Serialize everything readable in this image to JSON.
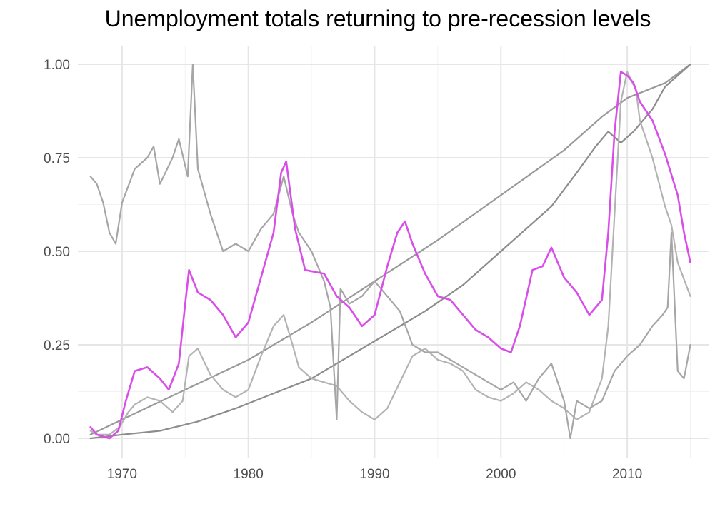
{
  "chart_data": {
    "type": "line",
    "title": "Unemployment totals returning to pre-recession levels",
    "xlabel": "",
    "ylabel": "",
    "xlim": [
      1966.5,
      2016.5
    ],
    "ylim": [
      0,
      1
    ],
    "x_ticks": [
      1970,
      1980,
      1990,
      2000,
      2010
    ],
    "x_tick_labels": [
      "1970",
      "1980",
      "1990",
      "2000",
      "2010"
    ],
    "y_ticks": [
      0,
      0.25,
      0.5,
      0.75,
      1
    ],
    "y_tick_labels": [
      "0.00",
      "0.25",
      "0.50",
      "0.75",
      "1.00"
    ],
    "grid": true,
    "legend": "none",
    "colors": {
      "highlight": "#d94ee8",
      "gray_mid": "#999999",
      "gray_dark": "#8c8c8c",
      "gray_light": "#b3b3b3",
      "gray_other": "#a6a6a6"
    },
    "series": [
      {
        "color": "#999999",
        "x": [
          1967.5,
          1970,
          1975,
          1980,
          1985,
          1990,
          1995,
          2000,
          2005,
          2008,
          2010,
          2013,
          2015
        ],
        "values": [
          0.01,
          0.05,
          0.13,
          0.21,
          0.31,
          0.42,
          0.53,
          0.65,
          0.77,
          0.86,
          0.91,
          0.95,
          1.0
        ]
      },
      {
        "color": "#8c8c8c",
        "x": [
          1967.5,
          1970,
          1973,
          1976,
          1979,
          1982,
          1985,
          1988,
          1991,
          1994,
          1997,
          2000,
          2002,
          2004,
          2006,
          2007.5,
          2008.5,
          2009.5,
          2010.5,
          2012,
          2013,
          2015
        ],
        "values": [
          0.0,
          0.01,
          0.02,
          0.045,
          0.08,
          0.12,
          0.16,
          0.22,
          0.28,
          0.34,
          0.41,
          0.5,
          0.56,
          0.62,
          0.71,
          0.78,
          0.82,
          0.79,
          0.82,
          0.88,
          0.94,
          1.0
        ]
      },
      {
        "color": "#d94ee8",
        "x": [
          1967.5,
          1968,
          1969,
          1969.7,
          1970.3,
          1971,
          1972,
          1973,
          1973.7,
          1974.5,
          1975,
          1975.3,
          1976,
          1977,
          1978,
          1979,
          1980,
          1981,
          1982,
          1982.6,
          1983,
          1983.7,
          1984.5,
          1986,
          1987,
          1988,
          1989,
          1990,
          1991,
          1991.8,
          1992.4,
          1993,
          1994,
          1995,
          1996,
          1997,
          1998,
          1999,
          2000,
          2000.8,
          2001.5,
          2002.5,
          2003.3,
          2004,
          2005,
          2006,
          2007,
          2008,
          2008.5,
          2009,
          2009.5,
          2010,
          2010.5,
          2011,
          2012,
          2013,
          2014,
          2014.5,
          2015
        ],
        "values": [
          0.03,
          0.01,
          0.0,
          0.02,
          0.1,
          0.18,
          0.19,
          0.16,
          0.13,
          0.2,
          0.36,
          0.45,
          0.39,
          0.37,
          0.33,
          0.27,
          0.31,
          0.43,
          0.55,
          0.71,
          0.74,
          0.56,
          0.45,
          0.44,
          0.38,
          0.35,
          0.3,
          0.33,
          0.46,
          0.55,
          0.58,
          0.52,
          0.44,
          0.38,
          0.37,
          0.33,
          0.29,
          0.27,
          0.24,
          0.23,
          0.3,
          0.45,
          0.46,
          0.51,
          0.43,
          0.39,
          0.33,
          0.37,
          0.55,
          0.82,
          0.98,
          0.97,
          0.95,
          0.9,
          0.85,
          0.76,
          0.65,
          0.55,
          0.47
        ]
      },
      {
        "color": "#b3b3b3",
        "x": [
          1967.5,
          1968,
          1969,
          1969.8,
          1970.5,
          1971,
          1972,
          1973,
          1974,
          1974.8,
          1975.3,
          1976,
          1977,
          1978,
          1979,
          1980,
          1981,
          1982,
          1982.8,
          1983.5,
          1984,
          1985,
          1986,
          1987,
          1988,
          1989,
          1990,
          1991,
          1992,
          1993,
          1994,
          1995,
          1996,
          1997,
          1998,
          1999,
          2000,
          2001,
          2002,
          2003,
          2004,
          2005,
          2006,
          2007,
          2008,
          2008.5,
          2009,
          2009.5,
          2010,
          2010.7,
          2011,
          2012,
          2013,
          2013.5,
          2014,
          2015
        ],
        "values": [
          0.02,
          0.01,
          0.01,
          0.03,
          0.07,
          0.09,
          0.11,
          0.1,
          0.07,
          0.1,
          0.22,
          0.24,
          0.17,
          0.13,
          0.11,
          0.13,
          0.22,
          0.3,
          0.33,
          0.25,
          0.19,
          0.16,
          0.15,
          0.14,
          0.1,
          0.07,
          0.05,
          0.08,
          0.15,
          0.22,
          0.24,
          0.21,
          0.2,
          0.18,
          0.13,
          0.11,
          0.1,
          0.12,
          0.15,
          0.13,
          0.1,
          0.08,
          0.05,
          0.07,
          0.16,
          0.3,
          0.6,
          0.9,
          0.98,
          0.93,
          0.85,
          0.75,
          0.62,
          0.57,
          0.47,
          0.38
        ]
      },
      {
        "color": "#a6a6a6",
        "x": [
          1967.5,
          1968,
          1968.5,
          1969,
          1969.5,
          1970,
          1971,
          1972,
          1972.5,
          1973,
          1974,
          1974.5,
          1975.2,
          1975.6,
          1976,
          1977,
          1978,
          1979,
          1980,
          1981,
          1982,
          1982.8,
          1983.5,
          1984,
          1985,
          1986,
          1986.5,
          1987,
          1987.3,
          1988,
          1989,
          1990,
          1991,
          1992,
          1993,
          1994,
          1995,
          1996,
          1997,
          1998,
          1999,
          2000,
          2001,
          2002,
          2003,
          2004,
          2005,
          2005.5,
          2006,
          2007,
          2008,
          2009,
          2010,
          2011,
          2012,
          2012.8,
          2013.2,
          2013.5,
          2014,
          2014.5,
          2015
        ],
        "values": [
          0.7,
          0.68,
          0.63,
          0.55,
          0.52,
          0.63,
          0.72,
          0.75,
          0.78,
          0.68,
          0.75,
          0.8,
          0.7,
          1.0,
          0.72,
          0.6,
          0.5,
          0.52,
          0.5,
          0.56,
          0.6,
          0.7,
          0.6,
          0.55,
          0.5,
          0.42,
          0.35,
          0.05,
          0.4,
          0.36,
          0.38,
          0.42,
          0.38,
          0.34,
          0.25,
          0.23,
          0.23,
          0.21,
          0.19,
          0.17,
          0.15,
          0.13,
          0.15,
          0.1,
          0.16,
          0.2,
          0.1,
          0.0,
          0.1,
          0.08,
          0.1,
          0.18,
          0.22,
          0.25,
          0.3,
          0.33,
          0.35,
          0.55,
          0.18,
          0.16,
          0.25
        ]
      }
    ]
  }
}
